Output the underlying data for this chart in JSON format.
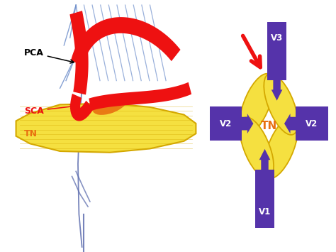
{
  "bg_color": "#ffffff",
  "left_panel_bg": "#ffffff",
  "right_panel_bg": "#d0d0d0",
  "red_color": "#ee1111",
  "yellow_color": "#f5e040",
  "yellow_outline": "#d4a800",
  "orange_color": "#e87010",
  "blue_line_color": "#7090cc",
  "dark_blue_line": "#5566aa",
  "purple_color": "#5533aa",
  "label_pca": "PCA",
  "label_sca": "SCA",
  "label_tn_left": "TN",
  "label_tn_right": "TN",
  "label_v1": "V1",
  "label_v2l": "V2",
  "label_v2r": "V2",
  "label_v3": "V3"
}
